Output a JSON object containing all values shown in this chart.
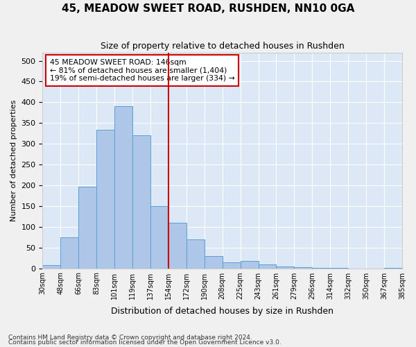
{
  "title": "45, MEADOW SWEET ROAD, RUSHDEN, NN10 0GA",
  "subtitle": "Size of property relative to detached houses in Rushden",
  "xlabel": "Distribution of detached houses by size in Rushden",
  "ylabel": "Number of detached properties",
  "bar_color": "#aec6e8",
  "bar_edge_color": "#5a9fd4",
  "background_color": "#dce8f5",
  "grid_color": "#ffffff",
  "bin_labels": [
    "30sqm",
    "48sqm",
    "66sqm",
    "83sqm",
    "101sqm",
    "119sqm",
    "137sqm",
    "154sqm",
    "172sqm",
    "190sqm",
    "208sqm",
    "225sqm",
    "243sqm",
    "261sqm",
    "279sqm",
    "296sqm",
    "314sqm",
    "332sqm",
    "350sqm",
    "367sqm",
    "385sqm"
  ],
  "bar_values": [
    8,
    75,
    197,
    334,
    390,
    321,
    150,
    110,
    70,
    30,
    15,
    18,
    10,
    5,
    2,
    1,
    1,
    0,
    0,
    1
  ],
  "vline_position": 7.0,
  "vline_color": "#cc0000",
  "annotation_text": "45 MEADOW SWEET ROAD: 146sqm\n← 81% of detached houses are smaller (1,404)\n19% of semi-detached houses are larger (334) →",
  "annotation_box_color": "#ffffff",
  "annotation_box_edgecolor": "#cc0000",
  "ylim": [
    0,
    520
  ],
  "yticks": [
    0,
    50,
    100,
    150,
    200,
    250,
    300,
    350,
    400,
    450,
    500
  ],
  "footnote1": "Contains HM Land Registry data © Crown copyright and database right 2024.",
  "footnote2": "Contains public sector information licensed under the Open Government Licence v3.0.",
  "fig_width": 6.0,
  "fig_height": 5.0,
  "dpi": 100
}
